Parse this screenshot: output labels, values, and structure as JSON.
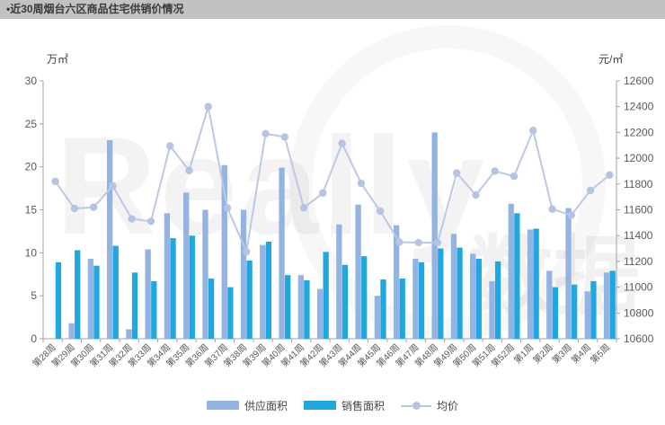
{
  "window": {
    "title": "•近30周烟台六区商品住宅供销价情况"
  },
  "watermark": {
    "text_latin": "Really",
    "text_cjk": "数据"
  },
  "chart_data": {
    "type": "bar",
    "subtype": "grouped-bars-with-line",
    "title": "近30周烟台六区商品住宅供销价情况",
    "categories": [
      "第28周",
      "第29周",
      "第30周",
      "第31周",
      "第32周",
      "第33周",
      "第34周",
      "第35周",
      "第36周",
      "第37周",
      "第38周",
      "第39周",
      "第40周",
      "第41周",
      "第42周",
      "第43周",
      "第44周",
      "第45周",
      "第46周",
      "第47周",
      "第48周",
      "第49周",
      "第50周",
      "第51周",
      "第52周",
      "第1周",
      "第2周",
      "第3周",
      "第4周",
      "第5周"
    ],
    "series": [
      {
        "name": "供应面积",
        "type": "bar",
        "axis": "left",
        "color": "#93b3e2",
        "values": [
          0,
          1.8,
          9.3,
          23.1,
          1.1,
          10.4,
          14.6,
          17.0,
          15.0,
          20.2,
          15.0,
          10.9,
          19.9,
          7.4,
          5.8,
          13.3,
          15.6,
          5.0,
          13.2,
          9.3,
          24.0,
          12.2,
          9.9,
          6.7,
          15.7,
          12.7,
          7.9,
          15.2,
          5.5,
          7.7
        ]
      },
      {
        "name": "销售面积",
        "type": "bar",
        "axis": "left",
        "color": "#21a7e0",
        "values": [
          8.9,
          10.3,
          8.5,
          10.8,
          7.7,
          6.7,
          11.7,
          12.0,
          7.0,
          6.0,
          9.1,
          11.3,
          7.4,
          6.8,
          10.1,
          8.6,
          9.6,
          6.9,
          7.0,
          8.9,
          10.5,
          10.6,
          9.3,
          9.0,
          14.6,
          12.8,
          6.0,
          6.3,
          6.7,
          7.9
        ]
      },
      {
        "name": "均价",
        "type": "line",
        "axis": "right",
        "color": "#bcc8e4",
        "marker_color": "#b6c4e2",
        "values": [
          11820,
          11610,
          11620,
          11785,
          11530,
          11510,
          12095,
          11905,
          12400,
          11615,
          11275,
          12190,
          12165,
          11615,
          11730,
          12115,
          11805,
          11590,
          11350,
          11345,
          11345,
          11885,
          11715,
          11900,
          11860,
          12215,
          11605,
          11560,
          11750,
          11870
        ]
      }
    ],
    "left_axis": {
      "title": "万㎡",
      "min": 0,
      "max": 30,
      "step": 5
    },
    "right_axis": {
      "title": "元/㎡",
      "min": 10600,
      "max": 12600,
      "step": 200
    },
    "grid": false,
    "legend_position": "bottom",
    "axis_color": "#a3a3a3",
    "label_color": "#595959"
  }
}
